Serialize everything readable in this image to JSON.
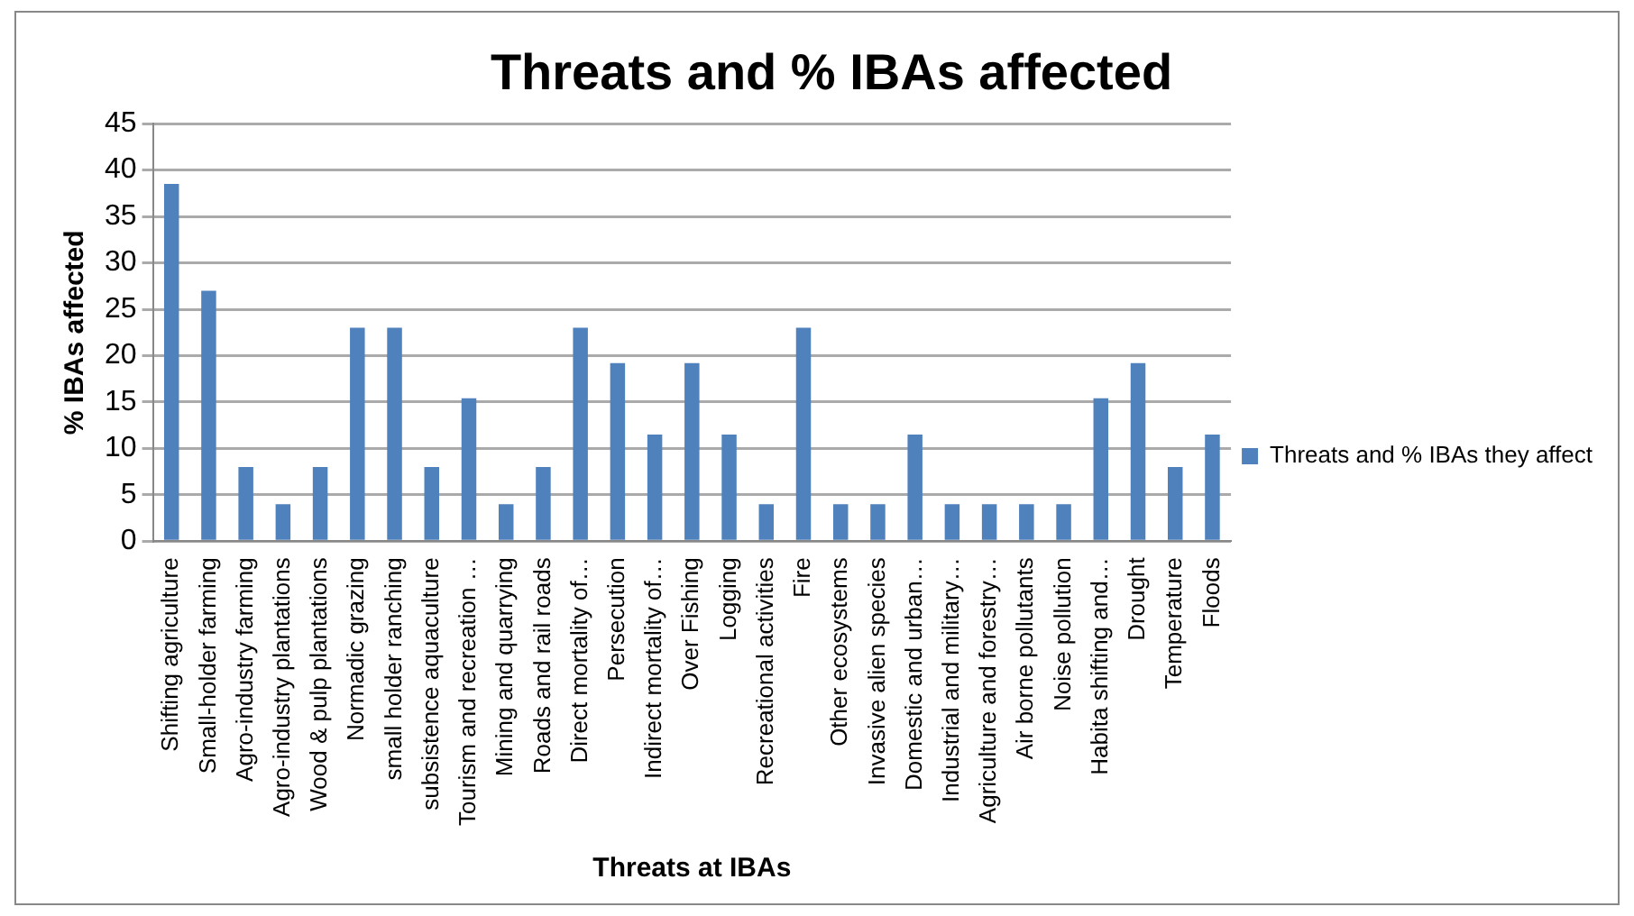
{
  "chart_data": {
    "type": "bar",
    "title": "Threats and % IBAs affected",
    "xlabel": "Threats at IBAs",
    "ylabel": "% IBAs affected",
    "categories": [
      "Shifting agriculture",
      "Small-holder farming",
      "Agro-industry farming",
      "Agro-industry plantations",
      "Wood & pulp plantations",
      "Normadic grazing",
      "small holder ranching",
      "subsistence aquaculture",
      "Tourism and recreation …",
      "Mining and quarrying",
      "Roads and rail roads",
      "Direct mortality of…",
      "Persecution",
      "Indirect mortality of…",
      "Over Fishing",
      "Logging",
      "Recreational activities",
      "Fire",
      "Other ecosystems",
      "Invasive alien species",
      "Domestic and urban…",
      "Industrial and military…",
      "Agriculture and forestry…",
      "Air borne pollutants",
      "Noise pollution",
      "Habita shifting and…",
      "Drought",
      "Temperature",
      "Floods"
    ],
    "series": [
      {
        "name": "Threats and % IBAs they affect",
        "color": "#4f81bd",
        "values": [
          38.5,
          27,
          8,
          4,
          8,
          23,
          23,
          8,
          15.4,
          4,
          8,
          23,
          19.2,
          11.5,
          19.2,
          11.5,
          4,
          23,
          4,
          4,
          11.5,
          4,
          4,
          4,
          4,
          15.4,
          19.2,
          8,
          11.5
        ]
      }
    ],
    "ylim": [
      0,
      45
    ],
    "yticks": [
      0,
      5,
      10,
      15,
      20,
      25,
      30,
      35,
      40,
      45
    ],
    "grid": "y",
    "legend": "right"
  }
}
